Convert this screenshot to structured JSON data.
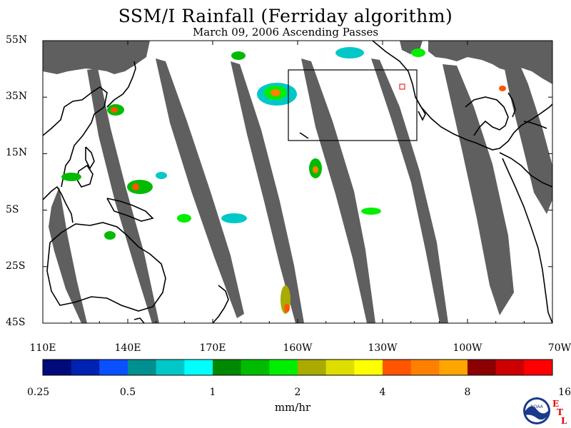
{
  "title": "SSM/I Rainfall (Ferriday algorithm)",
  "subtitle": "March 09, 2006  Ascending Passes",
  "lat_labels": [
    "55N",
    "35N",
    "15N",
    "5S",
    "25S",
    "45S"
  ],
  "lon_labels": [
    "110E",
    "140E",
    "170E",
    "160W",
    "130W",
    "100W",
    "70W"
  ],
  "colorbar": {
    "labels": [
      "0.25",
      "0.5",
      "1",
      "2",
      "4",
      "8",
      "16"
    ],
    "colors": [
      "#000a7a",
      "#0022b0",
      "#0a50ff",
      "#009090",
      "#00c8c8",
      "#00ffff",
      "#008800",
      "#00bb00",
      "#00ee00",
      "#aaaa00",
      "#dddd00",
      "#ffff00",
      "#ff5500",
      "#ff8000",
      "#ffa500",
      "#8b0000",
      "#cc0000",
      "#ff0000"
    ],
    "units": "mm/hr"
  },
  "logo": {
    "text": "NOAA",
    "etl_letters": [
      "E",
      "T",
      "L"
    ]
  },
  "colors": {
    "swath_gap": "#5f5f5f",
    "coast": "#000000",
    "box": "#000000"
  }
}
